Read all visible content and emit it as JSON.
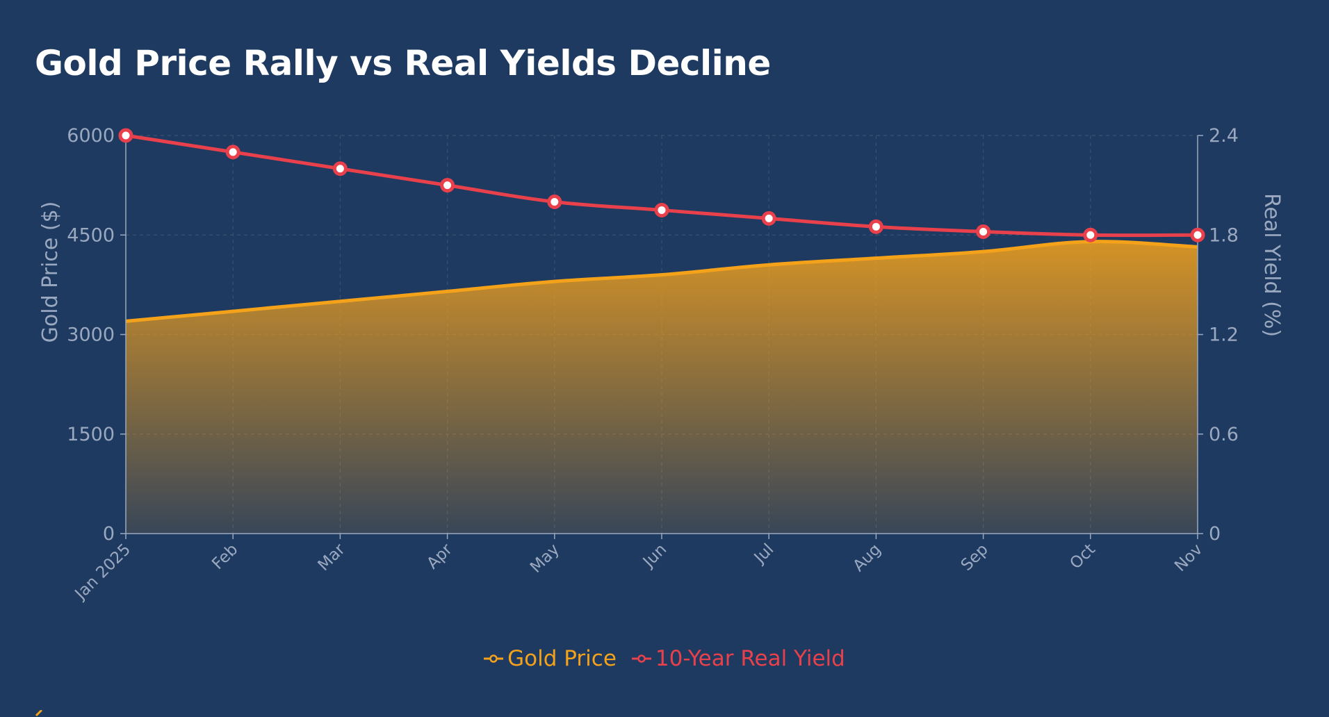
{
  "title": "Gold Price Rally vs Real Yields Decline",
  "colors": {
    "background": "#1f3a60",
    "gold": "#f5a21b",
    "yield": "#e8414c",
    "axis": "#9aa9c0",
    "grid": "#3a5070"
  },
  "legend": {
    "gold_label": "Gold Price",
    "yield_label": "10-Year Real Yield"
  },
  "chart_data": {
    "type": "line",
    "categories": [
      "Jan 2025",
      "Feb",
      "Mar",
      "Apr",
      "May",
      "Jun",
      "Jul",
      "Aug",
      "Sep",
      "Oct",
      "Nov"
    ],
    "series": [
      {
        "name": "Gold Price",
        "axis": "left",
        "style": "area",
        "values": [
          3200,
          3350,
          3500,
          3650,
          3800,
          3900,
          4050,
          4150,
          4250,
          4400,
          4320
        ]
      },
      {
        "name": "10-Year Real Yield",
        "axis": "right",
        "style": "line-markers",
        "values": [
          2.4,
          2.3,
          2.2,
          2.1,
          2.0,
          1.95,
          1.9,
          1.85,
          1.82,
          1.8,
          1.8
        ]
      }
    ],
    "ylabel_left": "Gold Price ($)",
    "ylabel_right": "Real Yield (%)",
    "ylim_left": [
      0,
      6000
    ],
    "ylim_right": [
      0,
      2.4
    ],
    "yticks_left": [
      0,
      1500,
      3000,
      4500,
      6000
    ],
    "yticks_right": [
      0,
      0.6,
      1.2,
      1.8,
      2.4
    ],
    "grid": true,
    "legend_position": "bottom-center"
  }
}
